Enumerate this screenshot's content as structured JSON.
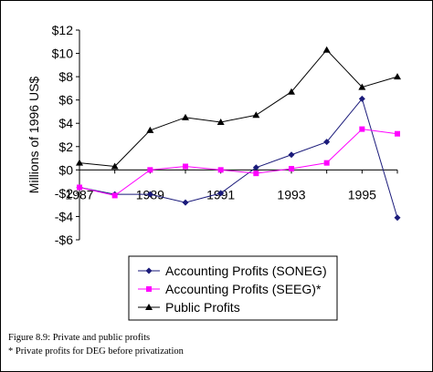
{
  "chart_data": {
    "type": "line",
    "ylabel": "Millions of 1996 US$",
    "xlabel": "",
    "x": [
      1987,
      1988,
      1989,
      1990,
      1991,
      1992,
      1993,
      1994,
      1995,
      1996
    ],
    "x_tick_labels": [
      "1987",
      "1989",
      "1991",
      "1993",
      "1995"
    ],
    "x_tick_values": [
      1987,
      1989,
      1991,
      1993,
      1995
    ],
    "y_ticks": [
      -6,
      -4,
      -2,
      0,
      2,
      4,
      6,
      8,
      10,
      12
    ],
    "y_tick_labels": [
      "-$6",
      "-$4",
      "-$2",
      "$0",
      "$2",
      "$4",
      "$6",
      "$8",
      "$10",
      "$12"
    ],
    "ylim": [
      -6,
      12
    ],
    "grid": false,
    "legend_position": "bottom-right",
    "series": [
      {
        "name": "Accounting Profits (SONEG)",
        "marker": "diamond",
        "color": "#1a1a7a",
        "values": [
          -1.5,
          -2.1,
          -2.1,
          -2.8,
          -2.0,
          0.2,
          1.3,
          2.4,
          6.1,
          -4.1
        ]
      },
      {
        "name": "Accounting Profits (SEEG)*",
        "marker": "square",
        "color": "#ff00ff",
        "values": [
          -1.5,
          -2.2,
          0.0,
          0.3,
          0.0,
          -0.3,
          0.1,
          0.6,
          3.5,
          3.1
        ]
      },
      {
        "name": "Public Profits",
        "marker": "triangle",
        "color": "#000000",
        "values": [
          0.6,
          0.3,
          3.4,
          4.5,
          4.1,
          4.7,
          6.7,
          10.3,
          7.1,
          8.0
        ]
      }
    ]
  },
  "caption": {
    "line1": "Figure 8.9: Private and public profits",
    "line2": "* Private profits for DEG before privatization"
  }
}
